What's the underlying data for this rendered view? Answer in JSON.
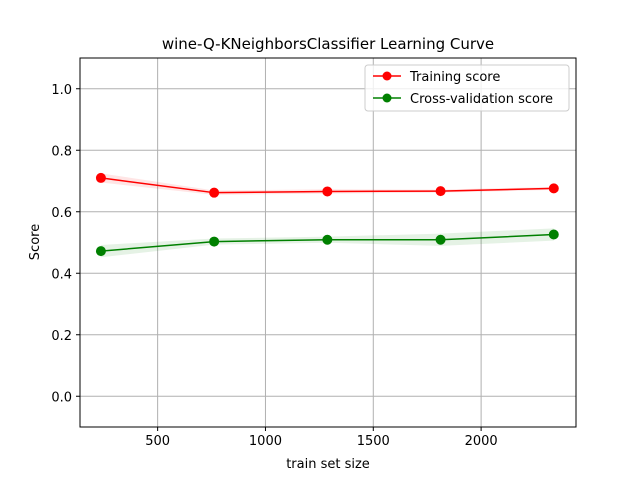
{
  "chart_data": {
    "type": "line",
    "title": "wine-Q-KNeighborsClassifier Learning Curve",
    "xlabel": "train set size",
    "ylabel": "Score",
    "xlim": [
      140,
      2440
    ],
    "ylim": [
      -0.1,
      1.1
    ],
    "xticks": [
      500,
      1000,
      1500,
      2000
    ],
    "yticks": [
      0.0,
      0.2,
      0.4,
      0.6,
      0.8,
      1.0
    ],
    "grid": true,
    "legend_position": "top-right",
    "x": [
      237,
      762,
      1287,
      1812,
      2337
    ],
    "series": [
      {
        "name": "Training score",
        "color": "#ff0000",
        "values": [
          0.71,
          0.662,
          0.666,
          0.667,
          0.676
        ],
        "band_lower": [
          0.695,
          0.655,
          0.659,
          0.662,
          0.671
        ],
        "band_upper": [
          0.725,
          0.669,
          0.673,
          0.672,
          0.681
        ]
      },
      {
        "name": "Cross-validation score",
        "color": "#008000",
        "values": [
          0.472,
          0.503,
          0.509,
          0.509,
          0.526
        ],
        "band_lower": [
          0.452,
          0.493,
          0.499,
          0.489,
          0.506
        ],
        "band_upper": [
          0.492,
          0.513,
          0.519,
          0.529,
          0.546
        ]
      }
    ]
  }
}
